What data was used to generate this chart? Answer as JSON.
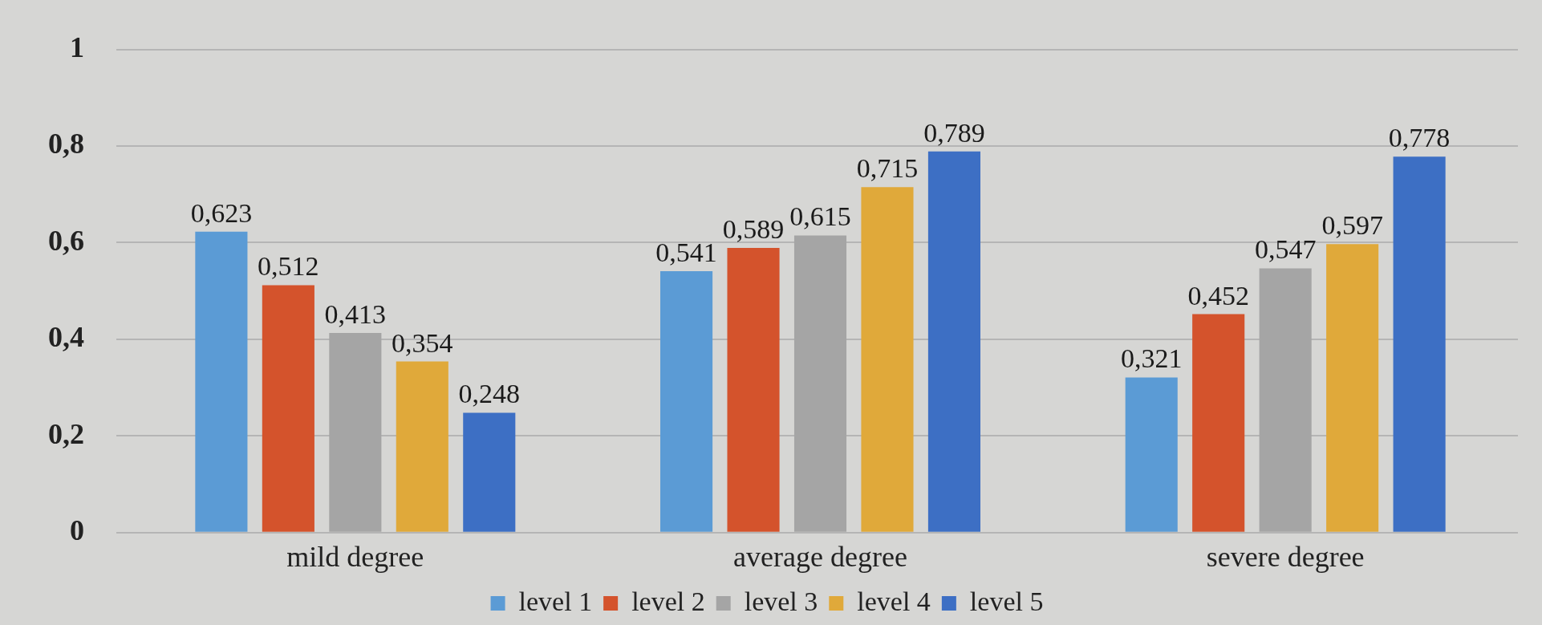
{
  "chart_data": {
    "type": "bar",
    "categories": [
      "mild degree",
      "average degree",
      "severe degree"
    ],
    "series": [
      {
        "name": "level 1",
        "color": "#5b9bd5",
        "values": [
          0.623,
          0.541,
          0.321
        ],
        "value_labels": [
          "0,623",
          "0,541",
          "0,321"
        ]
      },
      {
        "name": "level 2",
        "color": "#d4532c",
        "values": [
          0.512,
          0.589,
          0.452
        ],
        "value_labels": [
          "0,512",
          "0,589",
          "0,452"
        ]
      },
      {
        "name": "level 3",
        "color": "#a5a5a5",
        "values": [
          0.413,
          0.615,
          0.547
        ],
        "value_labels": [
          "0,413",
          "0,615",
          "0,547"
        ]
      },
      {
        "name": "level 4",
        "color": "#e0a93a",
        "values": [
          0.354,
          0.715,
          0.597
        ],
        "value_labels": [
          "0,354",
          "0,715",
          "0,597"
        ]
      },
      {
        "name": "level 5",
        "color": "#3d6fc4",
        "values": [
          0.248,
          0.789,
          0.778
        ],
        "value_labels": [
          "0,248",
          "0,789",
          "0,778"
        ]
      }
    ],
    "ylim": [
      0,
      1
    ],
    "yticks": [
      {
        "value": 0,
        "label": "0"
      },
      {
        "value": 0.2,
        "label": "0,2"
      },
      {
        "value": 0.4,
        "label": "0,4"
      },
      {
        "value": 0.6,
        "label": "0,6"
      },
      {
        "value": 0.8,
        "label": "0,8"
      },
      {
        "value": 1,
        "label": "1"
      }
    ],
    "grid": "y",
    "legend": "bottom"
  }
}
